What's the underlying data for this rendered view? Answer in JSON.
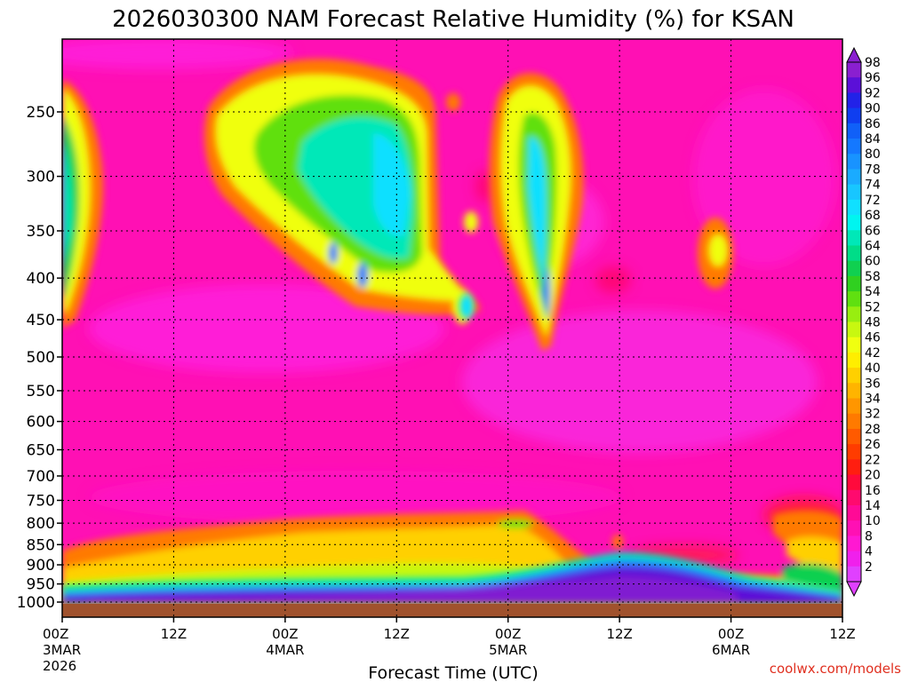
{
  "chart_data": {
    "type": "heatmap",
    "title": "2026030300 NAM Forecast Relative Humidity (%) for KSAN",
    "xlabel": "Forecast Time (UTC)",
    "ylabel": "",
    "y_scale": "log",
    "y_inverted": true,
    "ylim": [
      1000,
      200
    ],
    "y_ticks": [
      250,
      300,
      350,
      400,
      450,
      500,
      550,
      600,
      650,
      700,
      750,
      800,
      850,
      900,
      950,
      1000
    ],
    "x_ticks": [
      {
        "hour": 0,
        "label": "00Z",
        "date": "3MAR",
        "year": "2026"
      },
      {
        "hour": 12,
        "label": "12Z",
        "date": "",
        "year": ""
      },
      {
        "hour": 24,
        "label": "00Z",
        "date": "4MAR",
        "year": ""
      },
      {
        "hour": 36,
        "label": "12Z",
        "date": "",
        "year": ""
      },
      {
        "hour": 48,
        "label": "00Z",
        "date": "5MAR",
        "year": ""
      },
      {
        "hour": 60,
        "label": "12Z",
        "date": "",
        "year": ""
      },
      {
        "hour": 72,
        "label": "00Z",
        "date": "6MAR",
        "year": ""
      },
      {
        "hour": 84,
        "label": "12Z",
        "date": "",
        "year": ""
      }
    ],
    "xlim": [
      0,
      84
    ],
    "grid": true,
    "colorbar": {
      "placement": "right",
      "levels": [
        98,
        96,
        92,
        90,
        86,
        84,
        80,
        78,
        74,
        72,
        68,
        66,
        64,
        60,
        58,
        54,
        52,
        48,
        46,
        42,
        40,
        36,
        34,
        32,
        28,
        26,
        22,
        20,
        16,
        14,
        10,
        8,
        4,
        2
      ],
      "colors": [
        "#8a1fd0",
        "#5b10d8",
        "#2222e8",
        "#0f3ef0",
        "#1060f8",
        "#1478ff",
        "#1893ff",
        "#1aabff",
        "#18c6ff",
        "#10e0ff",
        "#00f5f0",
        "#00e8b8",
        "#00dd88",
        "#10d050",
        "#30d020",
        "#60e010",
        "#98ee10",
        "#c8f810",
        "#f0ff10",
        "#ffee00",
        "#ffd000",
        "#ffb400",
        "#ff9600",
        "#ff7a00",
        "#ff5a00",
        "#ff3c00",
        "#ff1e10",
        "#ff0a3c",
        "#ff0a6e",
        "#ff0a96",
        "#ff10b4",
        "#ff18d2",
        "#f020ec",
        "#e040ff"
      ]
    },
    "features": [
      {
        "name": "moist-boundary-layer",
        "hours": [
          0,
          84
        ],
        "pressure": [
          1000,
          920
        ],
        "rh": 95
      },
      {
        "name": "upper-moist-band-4mar",
        "hours": [
          14,
          36
        ],
        "pressure": [
          400,
          230
        ],
        "rh": 66
      },
      {
        "name": "upper-moist-band-5mar",
        "hours": [
          46,
          54
        ],
        "pressure": [
          470,
          240
        ],
        "rh": 62
      },
      {
        "name": "upper-moist-start",
        "hours": [
          0,
          3
        ],
        "pressure": [
          460,
          230
        ],
        "rh": 60
      },
      {
        "name": "marine-layer-top",
        "hours": [
          0,
          45
        ],
        "pressure": [
          900,
          820
        ],
        "rh": 40
      }
    ],
    "credit": "coolwx.com/models"
  }
}
